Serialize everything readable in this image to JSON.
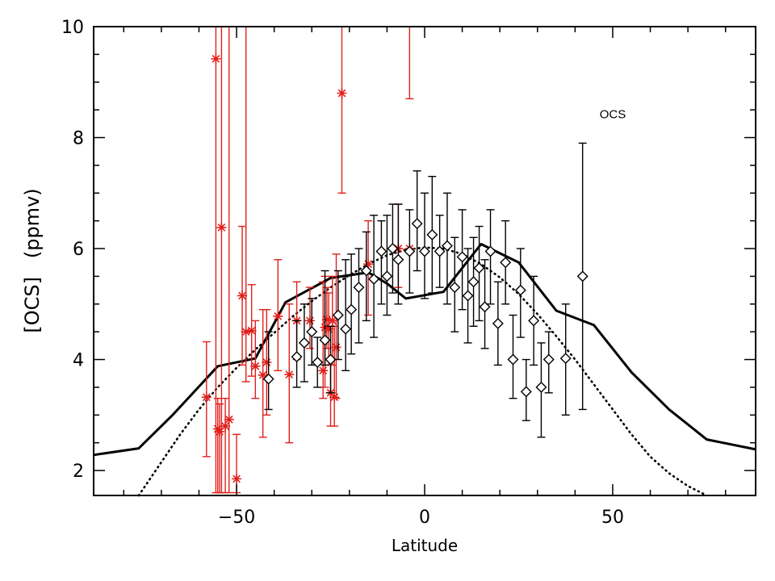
{
  "chart_data": {
    "type": "scatter",
    "title": "",
    "xlabel": "Latitude",
    "ylabel": "[OCS]   (ppmv)",
    "xlim": [
      -88,
      88
    ],
    "ylim": [
      1.55,
      10
    ],
    "xticks": [
      -50,
      0,
      50
    ],
    "xtick_labels": [
      "−50",
      "0",
      "50"
    ],
    "yticks": [
      2,
      4,
      6,
      8,
      10
    ],
    "ytick_labels": [
      "2",
      "4",
      "6",
      "8",
      "10"
    ],
    "grid": false,
    "legend": "none",
    "annotations": [
      {
        "text": "OCS",
        "x": 50,
        "y": 8.35
      }
    ],
    "colors": {
      "red_series": "#e0201b",
      "black_series": "#000000"
    },
    "series": [
      {
        "marker": "asterisk",
        "color": "#e0201b",
        "points": [
          {
            "x": -58,
            "y": 3.32,
            "lo": 2.25,
            "hi": 4.32
          },
          {
            "x": -55.5,
            "y": 9.42,
            "lo": 1.6,
            "hi": 10
          },
          {
            "x": -55,
            "y": 2.75,
            "lo": 1.6,
            "hi": 3.3
          },
          {
            "x": -54.5,
            "y": 2.7,
            "lo": 1.6,
            "hi": 3.2
          },
          {
            "x": -54,
            "y": 6.38,
            "lo": 1.6,
            "hi": 10
          },
          {
            "x": -53,
            "y": 2.8,
            "lo": 1.6,
            "hi": 3.3
          },
          {
            "x": -52,
            "y": 2.92,
            "lo": 1.6,
            "hi": 10
          },
          {
            "x": -50,
            "y": 1.85,
            "lo": 1.6,
            "hi": 2.65
          },
          {
            "x": -48.5,
            "y": 5.15,
            "lo": 3.9,
            "hi": 6.4
          },
          {
            "x": -47.5,
            "y": 4.5,
            "lo": 3.6,
            "hi": 10
          },
          {
            "x": -46,
            "y": 4.52,
            "lo": 3.7,
            "hi": 5.35
          },
          {
            "x": -45,
            "y": 3.88,
            "lo": 3.3,
            "hi": 4.7
          },
          {
            "x": -43,
            "y": 3.72,
            "lo": 2.6,
            "hi": 4.9
          },
          {
            "x": -42,
            "y": 3.95,
            "lo": 3.0,
            "hi": 4.9
          },
          {
            "x": -39,
            "y": 4.78,
            "lo": 3.8,
            "hi": 5.8
          },
          {
            "x": -36,
            "y": 3.73,
            "lo": 2.5,
            "hi": 5.0
          },
          {
            "x": -34,
            "y": 4.7,
            "lo": 4.0,
            "hi": 5.4
          },
          {
            "x": -30.5,
            "y": 4.7,
            "lo": 4.2,
            "hi": 5.3
          },
          {
            "x": -27,
            "y": 3.8,
            "lo": 3.3,
            "hi": 5.4
          },
          {
            "x": -26.5,
            "y": 4.58,
            "lo": 3.5,
            "hi": 5.5
          },
          {
            "x": -26,
            "y": 4.72,
            "lo": 4.2,
            "hi": 5.3
          },
          {
            "x": -25.5,
            "y": 4.55,
            "lo": 3.9,
            "hi": 5.2
          },
          {
            "x": -25,
            "y": 3.4,
            "lo": 2.8,
            "hi": 4.0
          },
          {
            "x": -24.5,
            "y": 4.7,
            "lo": 3.9,
            "hi": 5.5
          },
          {
            "x": -24,
            "y": 3.32,
            "lo": 2.8,
            "hi": 4.6
          },
          {
            "x": -23.5,
            "y": 4.22,
            "lo": 3.3,
            "hi": 5.9
          },
          {
            "x": -22,
            "y": 8.8,
            "lo": 7.0,
            "hi": 10
          },
          {
            "x": -15,
            "y": 5.72,
            "lo": 4.8,
            "hi": 6.5
          },
          {
            "x": -7,
            "y": 6.0,
            "lo": 5.3,
            "hi": 6.8
          },
          {
            "x": -4,
            "y": 6.0,
            "lo": 8.7,
            "hi": 10
          }
        ]
      },
      {
        "marker": "diamond",
        "color": "#000000",
        "points": [
          {
            "x": -41.5,
            "y": 3.65,
            "lo": 3.1,
            "hi": 4.5
          },
          {
            "x": -34,
            "y": 4.05,
            "lo": 3.5,
            "hi": 4.7
          },
          {
            "x": -32,
            "y": 4.3,
            "lo": 3.6,
            "hi": 5.0
          },
          {
            "x": -30,
            "y": 4.5,
            "lo": 3.9,
            "hi": 5.1
          },
          {
            "x": -28.5,
            "y": 3.95,
            "lo": 3.5,
            "hi": 4.4
          },
          {
            "x": -26.5,
            "y": 4.35,
            "lo": 3.9,
            "hi": 5.6
          },
          {
            "x": -25,
            "y": 4.0,
            "lo": 3.4,
            "hi": 4.6
          },
          {
            "x": -23,
            "y": 4.8,
            "lo": 4.0,
            "hi": 5.6
          },
          {
            "x": -21,
            "y": 4.55,
            "lo": 3.8,
            "hi": 5.8
          },
          {
            "x": -19.5,
            "y": 4.9,
            "lo": 4.1,
            "hi": 5.9
          },
          {
            "x": -17.5,
            "y": 5.3,
            "lo": 4.3,
            "hi": 6.0
          },
          {
            "x": -15.5,
            "y": 5.6,
            "lo": 4.7,
            "hi": 6.3
          },
          {
            "x": -13.5,
            "y": 5.45,
            "lo": 4.4,
            "hi": 6.6
          },
          {
            "x": -11.5,
            "y": 5.95,
            "lo": 5.0,
            "hi": 6.5
          },
          {
            "x": -10,
            "y": 5.5,
            "lo": 4.8,
            "hi": 6.6
          },
          {
            "x": -8.5,
            "y": 6.0,
            "lo": 5.2,
            "hi": 6.8
          },
          {
            "x": -7,
            "y": 5.8,
            "lo": 5.0,
            "hi": 6.8
          },
          {
            "x": -4,
            "y": 5.95,
            "lo": 5.2,
            "hi": 6.7
          },
          {
            "x": -2,
            "y": 6.45,
            "lo": 5.6,
            "hi": 7.4
          },
          {
            "x": 0,
            "y": 5.95,
            "lo": 5.1,
            "hi": 7.0
          },
          {
            "x": 2,
            "y": 6.25,
            "lo": 5.2,
            "hi": 7.3
          },
          {
            "x": 4,
            "y": 5.95,
            "lo": 5.3,
            "hi": 6.6
          },
          {
            "x": 6,
            "y": 6.05,
            "lo": 5.0,
            "hi": 7.0
          },
          {
            "x": 8,
            "y": 5.3,
            "lo": 4.5,
            "hi": 6.2
          },
          {
            "x": 10,
            "y": 5.85,
            "lo": 4.9,
            "hi": 6.7
          },
          {
            "x": 11.5,
            "y": 5.15,
            "lo": 4.3,
            "hi": 6.0
          },
          {
            "x": 13,
            "y": 5.4,
            "lo": 4.6,
            "hi": 6.2
          },
          {
            "x": 14.5,
            "y": 5.65,
            "lo": 4.7,
            "hi": 6.4
          },
          {
            "x": 16,
            "y": 4.95,
            "lo": 4.2,
            "hi": 5.8
          },
          {
            "x": 17.5,
            "y": 5.95,
            "lo": 5.0,
            "hi": 6.7
          },
          {
            "x": 19.5,
            "y": 4.65,
            "lo": 3.9,
            "hi": 5.4
          },
          {
            "x": 21.5,
            "y": 5.75,
            "lo": 5.0,
            "hi": 6.5
          },
          {
            "x": 23.5,
            "y": 4.0,
            "lo": 3.3,
            "hi": 4.8
          },
          {
            "x": 25.5,
            "y": 5.25,
            "lo": 4.4,
            "hi": 6.0
          },
          {
            "x": 27,
            "y": 3.42,
            "lo": 2.9,
            "hi": 4.0
          },
          {
            "x": 29,
            "y": 4.7,
            "lo": 3.9,
            "hi": 5.5
          },
          {
            "x": 31,
            "y": 3.5,
            "lo": 2.6,
            "hi": 4.3
          },
          {
            "x": 33,
            "y": 4.0,
            "lo": 3.4,
            "hi": 4.5
          },
          {
            "x": 37.5,
            "y": 4.02,
            "lo": 3.0,
            "hi": 5.0
          },
          {
            "x": 42,
            "y": 5.5,
            "lo": 3.1,
            "hi": 7.9
          }
        ]
      },
      {
        "style": "solid",
        "color": "#000000",
        "x": [
          -88,
          -76,
          -67,
          -55,
          -45,
          -37,
          -25,
          -15,
          -10,
          -5,
          5,
          15,
          25,
          35,
          45,
          55,
          65,
          75,
          88
        ],
        "y": [
          2.28,
          2.4,
          3.0,
          3.88,
          4.02,
          5.03,
          5.47,
          5.57,
          5.37,
          5.1,
          5.22,
          6.08,
          5.75,
          4.88,
          4.62,
          3.77,
          3.1,
          2.56,
          2.38
        ]
      },
      {
        "style": "dotted",
        "color": "#000000",
        "x": [
          -76,
          -70,
          -65,
          -60,
          -55,
          -50,
          -45,
          -40,
          -35,
          -30,
          -25,
          -20,
          -15,
          -10,
          -5,
          0,
          5,
          10,
          15,
          20,
          25,
          30,
          35,
          40,
          45,
          50,
          55,
          60,
          65,
          70,
          75
        ],
        "y": [
          1.55,
          2.15,
          2.65,
          3.1,
          3.5,
          3.85,
          4.18,
          4.48,
          4.78,
          5.05,
          5.3,
          5.52,
          5.72,
          5.88,
          5.98,
          6.02,
          6.0,
          5.9,
          5.72,
          5.48,
          5.18,
          4.82,
          4.42,
          4.0,
          3.55,
          3.1,
          2.65,
          2.25,
          1.95,
          1.72,
          1.55
        ]
      }
    ]
  }
}
